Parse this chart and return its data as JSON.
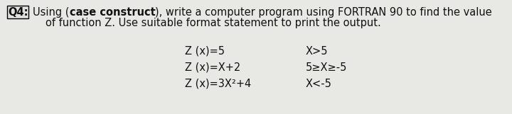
{
  "bg_color": "#e8e8e4",
  "box_label": "Q4:",
  "box_bg": "#e0e0dc",
  "box_border": "#000000",
  "line1_normal1": "Using (",
  "line1_bold": "case construct",
  "line1_normal2": "), write a computer program using FORTRAN 90 to find the value",
  "line2": "of function Z. Use suitable format statement to print the output.",
  "rows": [
    {
      "left": "Z (x)=5",
      "right": "X>5"
    },
    {
      "left": "Z (x)=X+2",
      "right": "5≥X≥-5"
    },
    {
      "left": "Z (x)=3X²+4",
      "right": "X<-5"
    }
  ],
  "font_size_main": 10.5,
  "font_size_table": 10.5,
  "text_color": "#111111"
}
